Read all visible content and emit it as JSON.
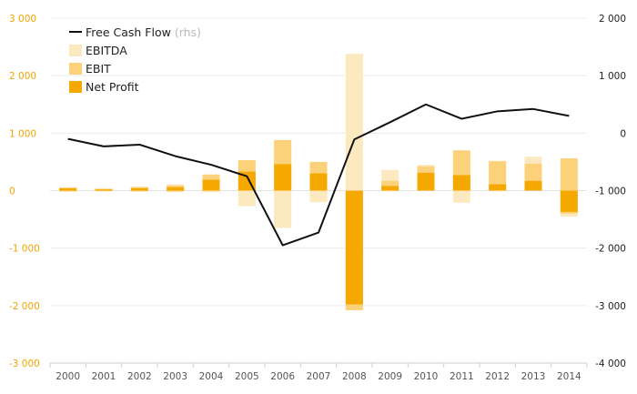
{
  "chart_data": {
    "type": "bar",
    "categories": [
      "2000",
      "2001",
      "2002",
      "2003",
      "2004",
      "2005",
      "2006",
      "2007",
      "2008",
      "2009",
      "2010",
      "2011",
      "2012",
      "2013",
      "2014"
    ],
    "series": [
      {
        "name": "EBITDA",
        "kind": "bar",
        "color": "#fde9bf",
        "values": [
          60,
          40,
          70,
          110,
          280,
          530,
          880,
          500,
          2380,
          360,
          450,
          700,
          520,
          590,
          560
        ],
        "neg_values": [
          -20,
          -10,
          -20,
          -30,
          -30,
          -270,
          -650,
          -200,
          -2080,
          -10,
          0,
          -210,
          -10,
          0,
          -450
        ]
      },
      {
        "name": "EBIT",
        "kind": "bar",
        "color": "#fbd27a",
        "values": [
          50,
          30,
          60,
          90,
          280,
          530,
          880,
          500,
          0,
          170,
          420,
          700,
          510,
          470,
          560
        ],
        "neg_values": [
          -10,
          -10,
          -10,
          -10,
          0,
          0,
          0,
          0,
          -2080,
          0,
          0,
          0,
          0,
          0,
          -400
        ]
      },
      {
        "name": "Net Profit",
        "kind": "bar",
        "color": "#f5a800",
        "values": [
          40,
          20,
          40,
          60,
          190,
          330,
          460,
          300,
          0,
          80,
          310,
          270,
          110,
          170,
          0
        ],
        "neg_values": [
          0,
          0,
          0,
          0,
          0,
          0,
          0,
          0,
          -1980,
          0,
          0,
          0,
          0,
          0,
          -370
        ]
      },
      {
        "name": "Free Cash Flow",
        "name_suffix": "(rhs)",
        "kind": "line",
        "axis": "right",
        "color": "#111111",
        "values": [
          -100,
          -230,
          -200,
          -400,
          -550,
          -750,
          -1950,
          -1730,
          -110,
          190,
          500,
          250,
          380,
          420,
          300
        ]
      }
    ],
    "left_axis": {
      "ylim": [
        -3000,
        3000
      ],
      "ticks": [
        "3 000",
        "2 000",
        "1 000",
        "0",
        "-1 000",
        "-2 000",
        "-3 000"
      ],
      "color": "#f0a500"
    },
    "right_axis": {
      "ylim": [
        -4000,
        2000
      ],
      "ticks": [
        "2 000",
        "1 000",
        "0",
        "-1 000",
        "-2 000",
        "-3 000",
        "-4 000"
      ],
      "color": "#222222"
    },
    "legend_position": "top-left",
    "grid": true
  }
}
